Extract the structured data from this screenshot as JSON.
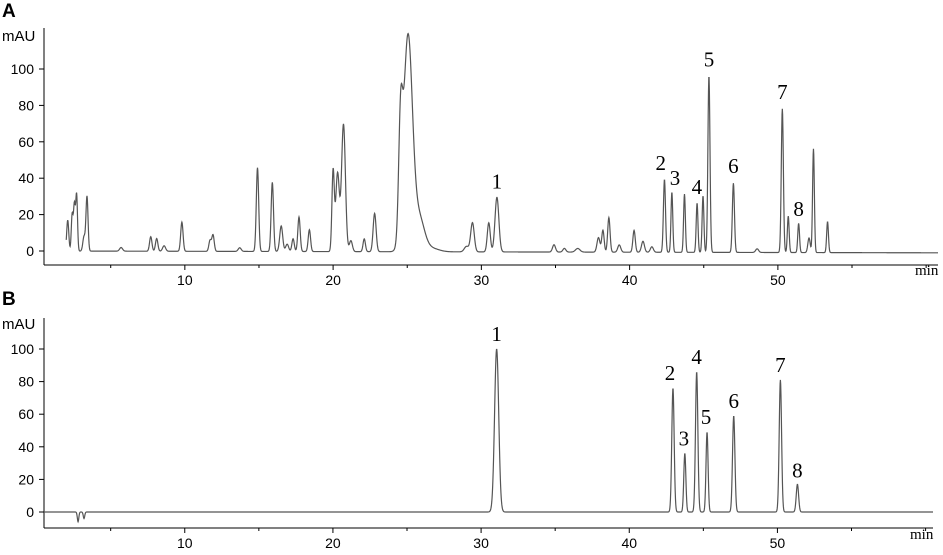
{
  "chart_data": [
    {
      "type": "line",
      "panel": "A",
      "ylabel": "mAU",
      "xlabel": "min",
      "xlim": [
        0.5,
        60.8
      ],
      "ylim": [
        -7,
        125
      ],
      "xticks": [
        10,
        20,
        30,
        40,
        50
      ],
      "yticks": [
        0,
        20,
        40,
        60,
        80,
        100
      ],
      "baseline_points": [
        [
          0.5,
          0
        ],
        [
          60.8,
          -1
        ]
      ],
      "peaks": [
        {
          "x": 2.1,
          "y": 17,
          "w": 0.07
        },
        {
          "x": 2.4,
          "y": 20,
          "w": 0.06
        },
        {
          "x": 2.55,
          "y": 25,
          "w": 0.06
        },
        {
          "x": 2.7,
          "y": 31,
          "w": 0.06
        },
        {
          "x": 3.2,
          "y": 8,
          "w": 0.08
        },
        {
          "x": 3.4,
          "y": 30,
          "w": 0.07
        },
        {
          "x": 5.7,
          "y": 2,
          "w": 0.1
        },
        {
          "x": 7.7,
          "y": 8,
          "w": 0.08
        },
        {
          "x": 8.1,
          "y": 7,
          "w": 0.08
        },
        {
          "x": 8.6,
          "y": 3,
          "w": 0.1
        },
        {
          "x": 9.8,
          "y": 16,
          "w": 0.08
        },
        {
          "x": 11.7,
          "y": 6,
          "w": 0.08
        },
        {
          "x": 11.9,
          "y": 9,
          "w": 0.08
        },
        {
          "x": 13.7,
          "y": 2,
          "w": 0.1
        },
        {
          "x": 14.9,
          "y": 46,
          "w": 0.08
        },
        {
          "x": 15.9,
          "y": 38,
          "w": 0.08
        },
        {
          "x": 16.5,
          "y": 14,
          "w": 0.1
        },
        {
          "x": 16.9,
          "y": 4,
          "w": 0.1
        },
        {
          "x": 17.3,
          "y": 7,
          "w": 0.08
        },
        {
          "x": 17.7,
          "y": 19,
          "w": 0.08
        },
        {
          "x": 18.4,
          "y": 12,
          "w": 0.08
        },
        {
          "x": 20.0,
          "y": 44,
          "w": 0.08
        },
        {
          "x": 20.3,
          "y": 43,
          "w": 0.12
        },
        {
          "x": 20.7,
          "y": 70,
          "w": 0.13
        },
        {
          "x": 21.2,
          "y": 6,
          "w": 0.1
        },
        {
          "x": 22.1,
          "y": 7,
          "w": 0.08
        },
        {
          "x": 22.8,
          "y": 21,
          "w": 0.1
        },
        {
          "x": 24.55,
          "y": 58,
          "w": 0.13
        },
        {
          "x": 25.05,
          "y": 118,
          "w": 0.3
        },
        {
          "x": 25.8,
          "y": 18,
          "w": 0.35
        },
        {
          "x": 26.6,
          "y": 2,
          "w": 0.5
        },
        {
          "x": 29.0,
          "y": 3,
          "w": 0.15
        },
        {
          "x": 29.4,
          "y": 16,
          "w": 0.12
        },
        {
          "x": 30.5,
          "y": 16,
          "w": 0.1
        },
        {
          "x": 31.05,
          "y": 30,
          "w": 0.13
        },
        {
          "x": 34.9,
          "y": 4,
          "w": 0.1
        },
        {
          "x": 35.6,
          "y": 2,
          "w": 0.1
        },
        {
          "x": 36.5,
          "y": 2,
          "w": 0.15
        },
        {
          "x": 37.9,
          "y": 8,
          "w": 0.1
        },
        {
          "x": 38.2,
          "y": 12,
          "w": 0.08
        },
        {
          "x": 38.6,
          "y": 19,
          "w": 0.08
        },
        {
          "x": 39.3,
          "y": 4,
          "w": 0.1
        },
        {
          "x": 40.3,
          "y": 12,
          "w": 0.08
        },
        {
          "x": 40.9,
          "y": 6,
          "w": 0.1
        },
        {
          "x": 41.5,
          "y": 3,
          "w": 0.1
        },
        {
          "x": 42.35,
          "y": 40,
          "w": 0.07
        },
        {
          "x": 42.85,
          "y": 33,
          "w": 0.06
        },
        {
          "x": 43.7,
          "y": 32,
          "w": 0.06
        },
        {
          "x": 44.55,
          "y": 27,
          "w": 0.06
        },
        {
          "x": 44.95,
          "y": 31,
          "w": 0.06
        },
        {
          "x": 45.35,
          "y": 97,
          "w": 0.07
        },
        {
          "x": 47.0,
          "y": 38,
          "w": 0.07
        },
        {
          "x": 48.6,
          "y": 2,
          "w": 0.1
        },
        {
          "x": 50.3,
          "y": 79,
          "w": 0.07
        },
        {
          "x": 50.7,
          "y": 20,
          "w": 0.06
        },
        {
          "x": 51.4,
          "y": 16,
          "w": 0.06
        },
        {
          "x": 52.1,
          "y": 8,
          "w": 0.08
        },
        {
          "x": 52.4,
          "y": 57,
          "w": 0.06
        },
        {
          "x": 53.35,
          "y": 17,
          "w": 0.06
        }
      ],
      "annotations": [
        {
          "text": "1",
          "x": 31.05,
          "y": 30
        },
        {
          "text": "2",
          "x": 42.3,
          "y": 40
        },
        {
          "text": "3",
          "x": 43.6,
          "y": 32
        },
        {
          "text": "4",
          "x": 44.6,
          "y": 27
        },
        {
          "text": "5",
          "x": 45.35,
          "y": 97
        },
        {
          "text": "6",
          "x": 47.0,
          "y": 38
        },
        {
          "text": "7",
          "x": 50.3,
          "y": 79
        },
        {
          "text": "8",
          "x": 51.4,
          "y": 16
        }
      ]
    },
    {
      "type": "line",
      "panel": "B",
      "ylabel": "mAU",
      "xlabel": "min",
      "xlim": [
        0.5,
        60.5
      ],
      "ylim": [
        -7,
        125
      ],
      "xticks": [
        10,
        20,
        30,
        40,
        50
      ],
      "yticks": [
        0,
        20,
        40,
        60,
        80,
        100
      ],
      "baseline_points": [
        [
          0.5,
          0
        ],
        [
          60.5,
          0
        ]
      ],
      "peaks": [
        {
          "x": 2.8,
          "y": -6,
          "w": 0.05
        },
        {
          "x": 3.2,
          "y": -4,
          "w": 0.05
        },
        {
          "x": 31.05,
          "y": 100,
          "w": 0.14
        },
        {
          "x": 42.95,
          "y": 76,
          "w": 0.08
        },
        {
          "x": 43.75,
          "y": 36,
          "w": 0.07
        },
        {
          "x": 44.55,
          "y": 86,
          "w": 0.08
        },
        {
          "x": 45.25,
          "y": 49,
          "w": 0.07
        },
        {
          "x": 47.05,
          "y": 59,
          "w": 0.08
        },
        {
          "x": 50.2,
          "y": 81,
          "w": 0.08
        },
        {
          "x": 51.35,
          "y": 17,
          "w": 0.08
        }
      ],
      "annotations": [
        {
          "text": "1",
          "x": 31.05,
          "y": 100
        },
        {
          "text": "2",
          "x": 42.95,
          "y": 76
        },
        {
          "text": "3",
          "x": 43.75,
          "y": 36
        },
        {
          "text": "4",
          "x": 44.55,
          "y": 86
        },
        {
          "text": "5",
          "x": 45.25,
          "y": 49
        },
        {
          "text": "6",
          "x": 47.05,
          "y": 59
        },
        {
          "text": "7",
          "x": 50.2,
          "y": 81
        },
        {
          "text": "8",
          "x": 51.35,
          "y": 17
        }
      ]
    }
  ]
}
